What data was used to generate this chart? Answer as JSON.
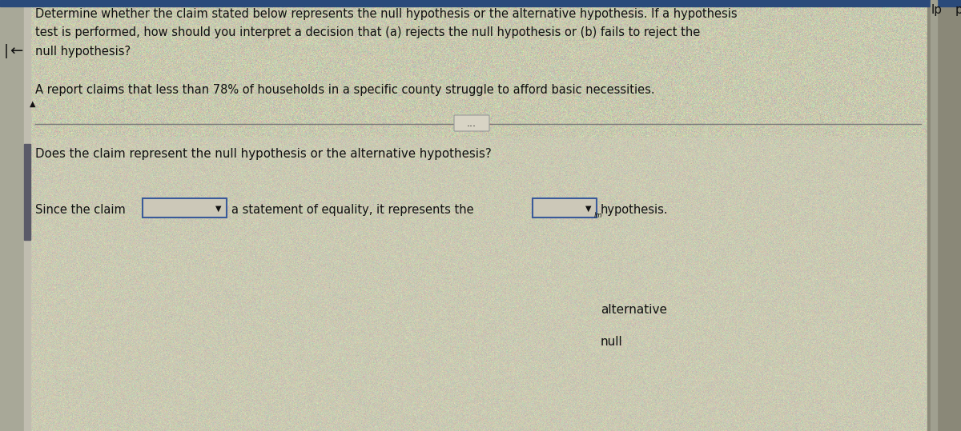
{
  "bg_color": "#ccc9b5",
  "bg_texture_color1": "#c8c9a8",
  "bg_texture_color2": "#b8c4a0",
  "sidebar_left_color": "#a8a898",
  "sidebar_right_color": "#8a8878",
  "top_bar_color": "#2a4a7a",
  "left_accent_color": "#5a5a68",
  "fig_width": 12.0,
  "fig_height": 5.39,
  "instruction_text_line1": "Determine whether the claim stated below represents the null hypothesis or the alternative hypothesis. If a hypothesis",
  "instruction_text_line2": "test is performed, how should you interpret a decision that (a) rejects the null hypothesis or (b) fails to reject the",
  "instruction_text_line3": "null hypothesis?",
  "claim_text": "A report claims that less than 78% of households in a specific county struggle to afford basic necessities.",
  "question_text": "Does the claim represent the null hypothesis or the alternative hypothesis?",
  "since_label": "Since the claim",
  "middle_text": "a statement of equality, it represents the",
  "end_text": "hypothesis.",
  "dropdown_options_right": [
    "alternative",
    "null"
  ],
  "font_color": "#111111",
  "separator_line_color": "#777777",
  "box_border_color": "#3a5a9a",
  "top_text": "lp",
  "arrow_left_char": "←",
  "triangle_up_char": "▲",
  "ellipsis_text": "..."
}
